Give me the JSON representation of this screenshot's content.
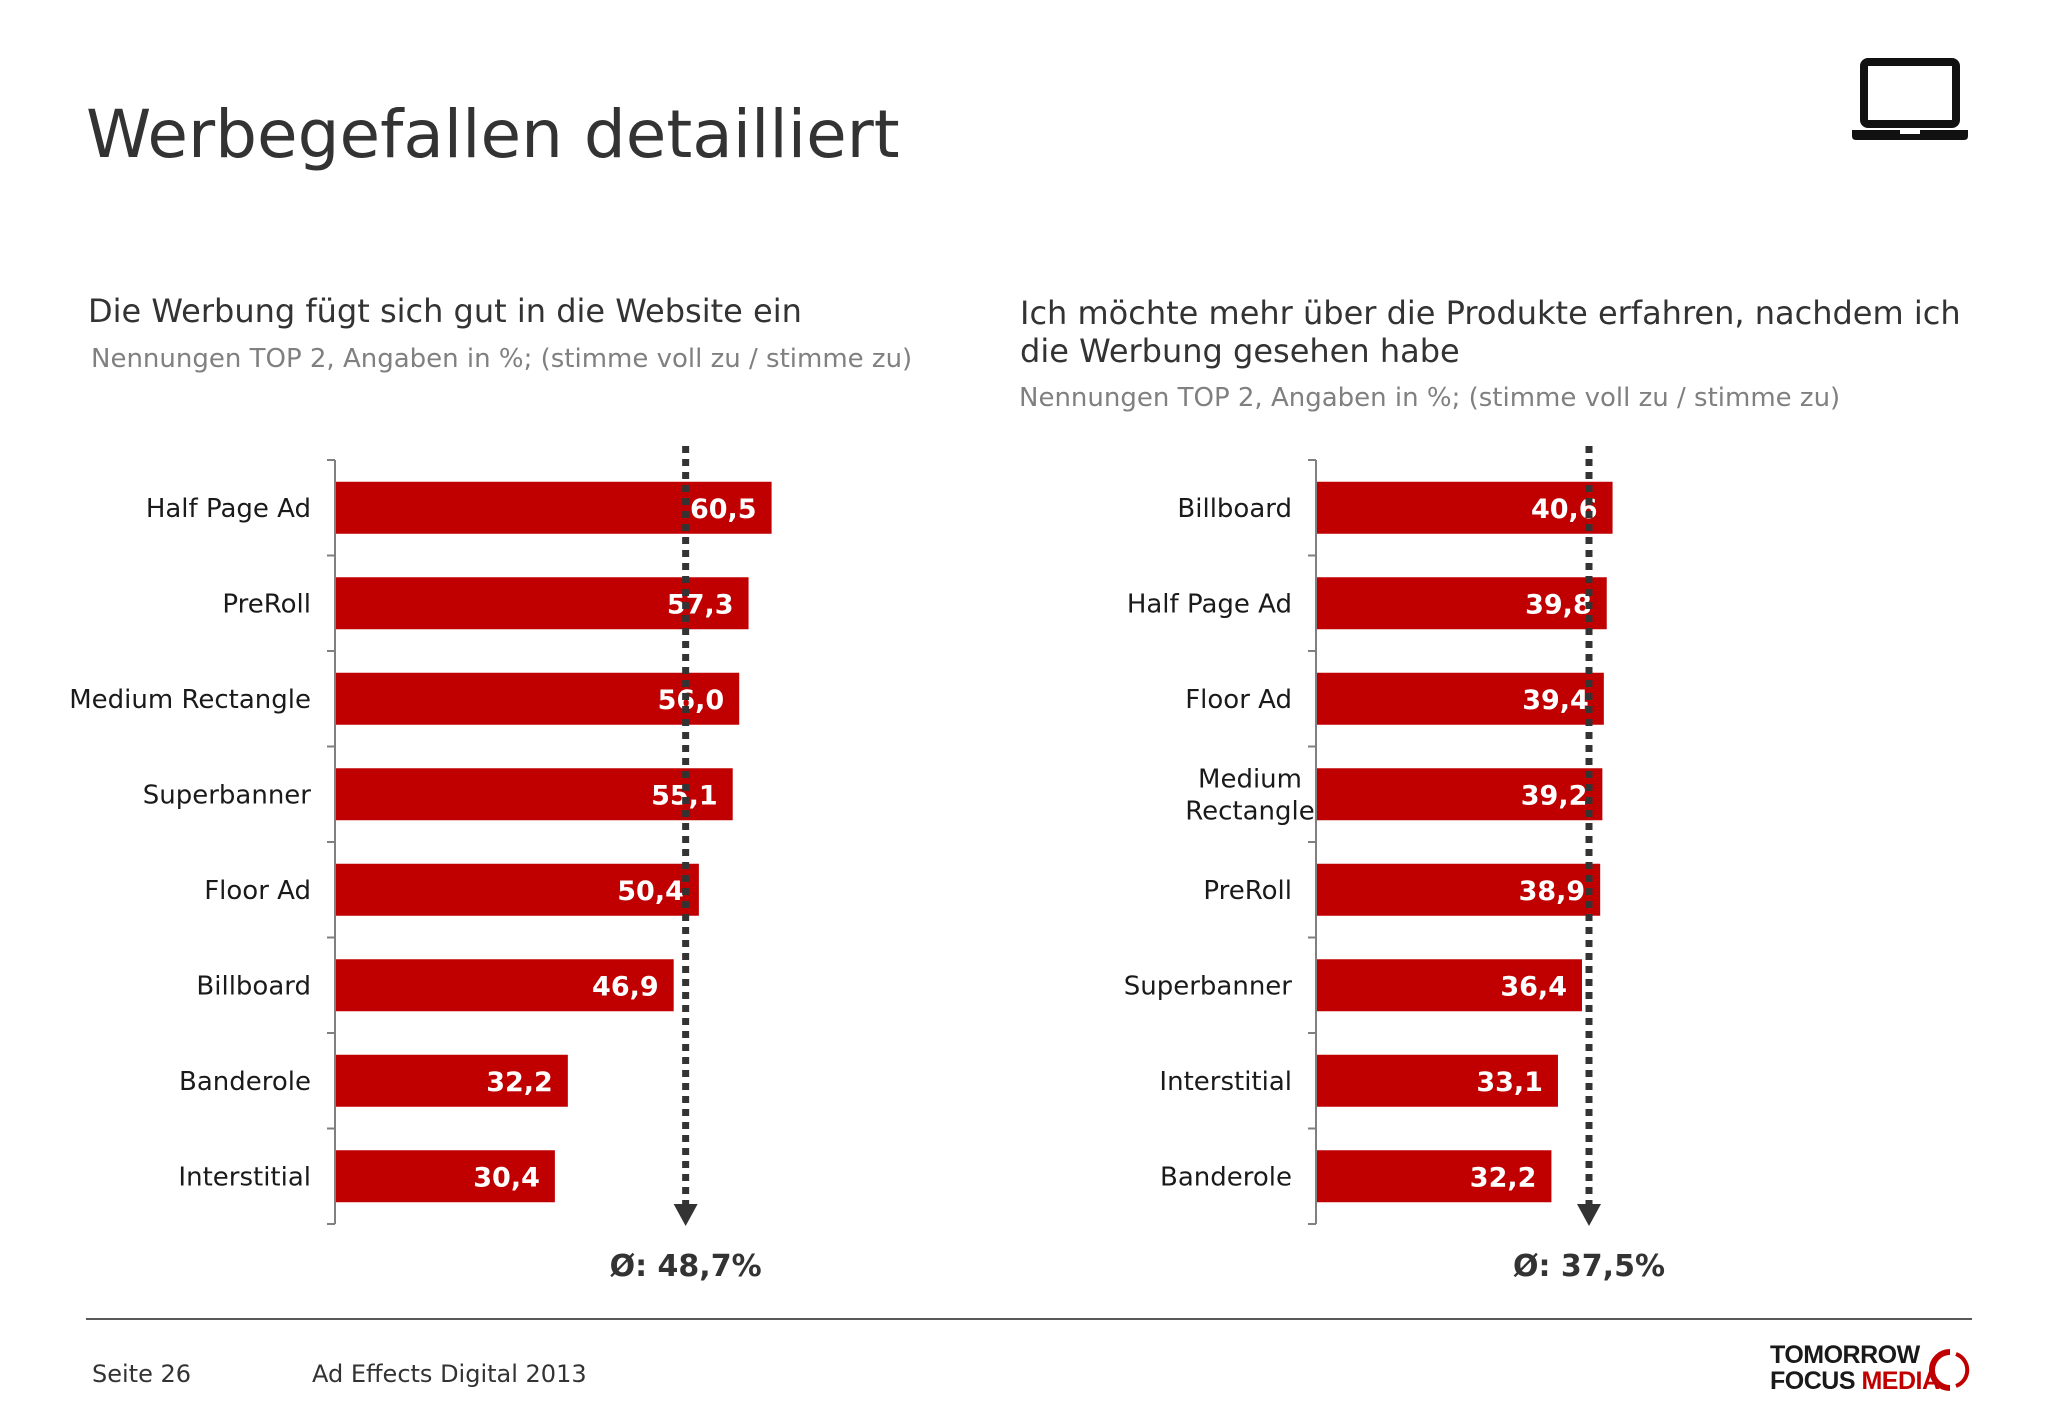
{
  "title": "Werbegefallen detailliert",
  "header_icon": "laptop-icon",
  "charts": [
    {
      "title_lines": [
        "Die Werbung fügt sich gut in die Website ein"
      ],
      "subtitle": "Nennungen TOP 2, Angaben in %; (stimme voll zu / stimme zu)",
      "average_label": "Ø: 48,7%"
    },
    {
      "title_lines": [
        "Ich möchte mehr über die Produkte erfahren, nachdem ich",
        "die Werbung gesehen habe"
      ],
      "subtitle": "Nennungen TOP 2, Angaben in %; (stimme voll zu / stimme zu)",
      "average_label": "Ø: 37,5%"
    }
  ],
  "chart_data": [
    {
      "type": "bar",
      "orientation": "horizontal",
      "categories": [
        "Half Page Ad",
        "PreRoll",
        "Medium Rectangle",
        "Superbanner",
        "Floor Ad",
        "Billboard",
        "Banderole",
        "Interstitial"
      ],
      "values": [
        60.5,
        57.3,
        56.0,
        55.1,
        50.4,
        46.9,
        32.2,
        30.4
      ],
      "value_labels": [
        "60,5",
        "57,3",
        "56,0",
        "55,1",
        "50,4",
        "46,9",
        "32,2",
        "30,4"
      ],
      "average": 48.7,
      "xlim": [
        0,
        100
      ],
      "bar_color": "#c00000",
      "grid": false
    },
    {
      "type": "bar",
      "orientation": "horizontal",
      "categories": [
        "Billboard",
        "Half Page Ad",
        "Floor Ad",
        "Medium Rectangle",
        "PreRoll",
        "Superbanner",
        "Interstitial",
        "Banderole"
      ],
      "category_lines": [
        [
          "Billboard"
        ],
        [
          "Half Page Ad"
        ],
        [
          "Floor Ad"
        ],
        [
          "Medium",
          "Rectangle"
        ],
        [
          "PreRoll"
        ],
        [
          "Superbanner"
        ],
        [
          "Interstitial"
        ],
        [
          "Banderole"
        ]
      ],
      "values": [
        40.6,
        39.8,
        39.4,
        39.2,
        38.9,
        36.4,
        33.1,
        32.2
      ],
      "value_labels": [
        "40,6",
        "39,8",
        "39,4",
        "39,2",
        "38,9",
        "36,4",
        "33,1",
        "32,2"
      ],
      "average": 37.5,
      "xlim": [
        0,
        100
      ],
      "bar_color": "#c00000",
      "grid": false
    }
  ],
  "footer": {
    "page": "Seite 26",
    "source": "Ad Effects Digital 2013",
    "brand_line1": "TOMORROW",
    "brand_line2a": "FOCUS",
    "brand_line2b": "MEDIA",
    "brand_accent": "#c00000"
  }
}
